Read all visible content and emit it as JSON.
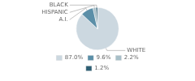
{
  "chart_data": {
    "type": "pie",
    "categories": [
      "WHITE",
      "A.I.",
      "HISPANIC",
      "BLACK"
    ],
    "values": [
      87.0,
      9.6,
      2.2,
      1.2
    ],
    "value_labels": [
      "87.0%",
      "9.6%",
      "2.2%",
      "1.2%"
    ],
    "colors": [
      "#ccd8e0",
      "#5b8fa8",
      "#a8bfc8",
      "#2e5f74"
    ],
    "legend": "bottom"
  }
}
